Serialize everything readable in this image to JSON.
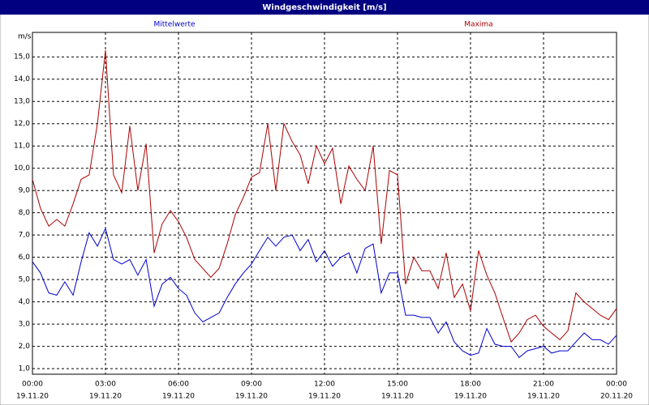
{
  "chart_data": {
    "type": "line",
    "title": "Windgeschwindigkeit [m/s]",
    "y_label": "m/s",
    "x": [
      0,
      0.33,
      0.67,
      1,
      1.33,
      1.67,
      2,
      2.33,
      2.67,
      3,
      3.33,
      3.67,
      4,
      4.33,
      4.67,
      5,
      5.33,
      5.67,
      6,
      6.33,
      6.67,
      7,
      7.33,
      7.67,
      8,
      8.33,
      8.67,
      9,
      9.33,
      9.67,
      10,
      10.33,
      10.67,
      11,
      11.33,
      11.67,
      12,
      12.33,
      12.67,
      13,
      13.33,
      13.67,
      14,
      14.33,
      14.67,
      15,
      15.33,
      15.67,
      16,
      16.33,
      16.67,
      17,
      17.33,
      17.67,
      18,
      18.33,
      18.67,
      19,
      19.33,
      19.67,
      20,
      20.33,
      20.67,
      21,
      21.33,
      21.67,
      22,
      22.33,
      22.67,
      23,
      23.33,
      23.67,
      24
    ],
    "series": [
      {
        "name": "Mittelwerte",
        "color": "#0000cc",
        "values": [
          5.8,
          5.3,
          4.4,
          4.3,
          4.9,
          4.3,
          5.8,
          7.1,
          6.5,
          7.3,
          5.9,
          5.7,
          5.9,
          5.2,
          5.9,
          3.8,
          4.8,
          5.1,
          4.6,
          4.3,
          3.5,
          3.1,
          3.3,
          3.5,
          4.2,
          4.8,
          5.3,
          5.7,
          6.3,
          6.9,
          6.5,
          6.9,
          7.0,
          6.3,
          6.8,
          5.8,
          6.3,
          5.6,
          6.0,
          6.2,
          5.3,
          6.4,
          6.6,
          4.4,
          5.3,
          5.3,
          3.4,
          3.4,
          3.3,
          3.3,
          2.6,
          3.1,
          2.2,
          1.8,
          1.6,
          1.7,
          2.8,
          2.1,
          2.0,
          2.0,
          1.5,
          1.8,
          1.9,
          2.0,
          1.7,
          1.8,
          1.8,
          2.2,
          2.6,
          2.3,
          2.3,
          2.1,
          2.5
        ]
      },
      {
        "name": "Maxima",
        "color": "#aa0000",
        "values": [
          9.5,
          8.2,
          7.4,
          7.7,
          7.4,
          8.4,
          9.5,
          9.7,
          12.0,
          15.3,
          9.7,
          8.9,
          11.9,
          9.0,
          11.1,
          6.2,
          7.5,
          8.1,
          7.6,
          6.9,
          5.9,
          5.5,
          5.1,
          5.5,
          6.6,
          7.9,
          8.7,
          9.6,
          9.8,
          12.0,
          9.0,
          12.0,
          11.2,
          10.6,
          9.3,
          11.0,
          10.2,
          10.9,
          8.4,
          10.1,
          9.5,
          9.0,
          11.0,
          6.6,
          9.9,
          9.7,
          4.8,
          6.0,
          5.4,
          5.4,
          4.6,
          6.2,
          4.2,
          4.8,
          3.6,
          6.3,
          5.2,
          4.4,
          3.3,
          2.2,
          2.6,
          3.2,
          3.4,
          2.9,
          2.6,
          2.3,
          2.7,
          4.4,
          4.0,
          3.7,
          3.4,
          3.2,
          3.7
        ]
      }
    ],
    "xlim": [
      0,
      24
    ],
    "xticks": [
      {
        "value": 0,
        "label": "00:00",
        "date": "19.11.20"
      },
      {
        "value": 3,
        "label": "03:00",
        "date": "19.11.20"
      },
      {
        "value": 6,
        "label": "06:00",
        "date": "19.11.20"
      },
      {
        "value": 9,
        "label": "09:00",
        "date": "19.11.20"
      },
      {
        "value": 12,
        "label": "12:00",
        "date": "19.11.20"
      },
      {
        "value": 15,
        "label": "15:00",
        "date": "19.11.20"
      },
      {
        "value": 18,
        "label": "18:00",
        "date": "19.11.20"
      },
      {
        "value": 21,
        "label": "21:00",
        "date": "19.11.20"
      },
      {
        "value": 24,
        "label": "00:00",
        "date": "20.11.20"
      }
    ],
    "ylim": [
      0.75,
      16.1
    ],
    "yticks": [
      {
        "value": 1,
        "label": "1,0"
      },
      {
        "value": 2,
        "label": "2,0"
      },
      {
        "value": 3,
        "label": "3,0"
      },
      {
        "value": 4,
        "label": "4,0"
      },
      {
        "value": 5,
        "label": "5,0"
      },
      {
        "value": 6,
        "label": "6,0"
      },
      {
        "value": 7,
        "label": "7,0"
      },
      {
        "value": 8,
        "label": "8,0"
      },
      {
        "value": 9,
        "label": "9,0"
      },
      {
        "value": 10,
        "label": "10,0"
      },
      {
        "value": 11,
        "label": "11,0"
      },
      {
        "value": 12,
        "label": "12,0"
      },
      {
        "value": 13,
        "label": "13,0"
      },
      {
        "value": 14,
        "label": "14,0"
      },
      {
        "value": 15,
        "label": "15,0"
      }
    ],
    "grid": true
  }
}
